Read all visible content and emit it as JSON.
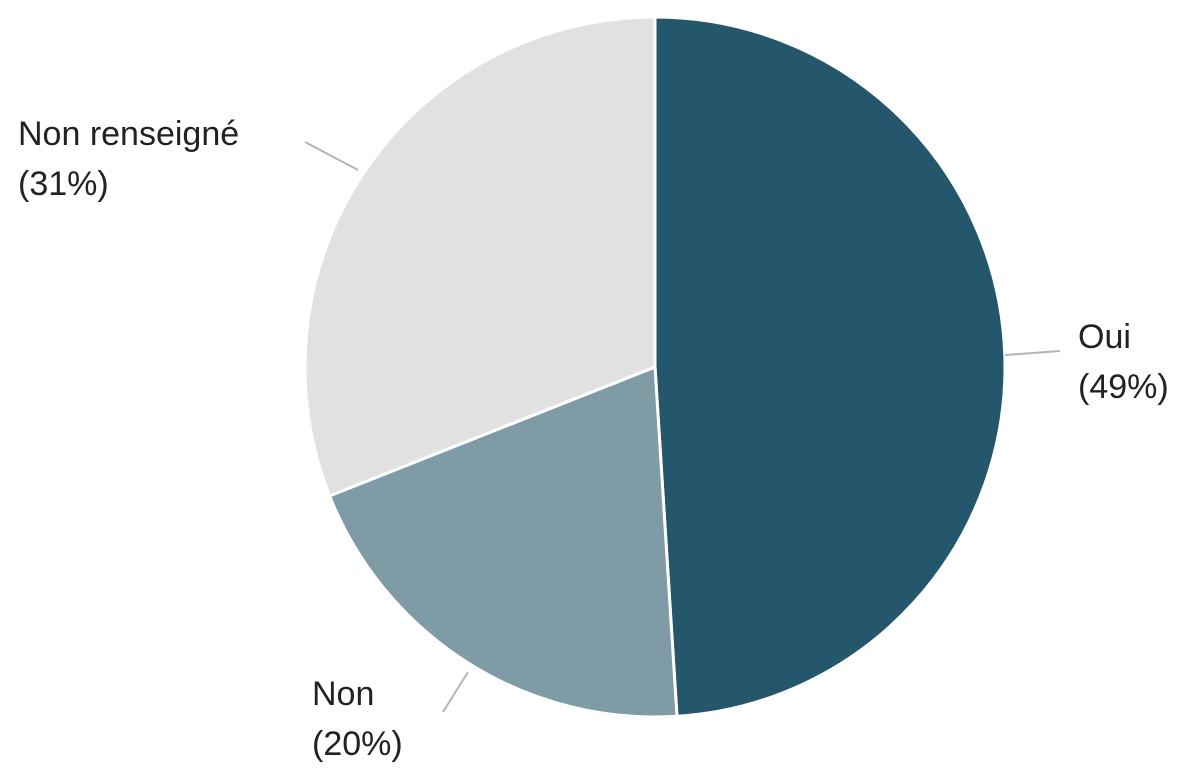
{
  "chart_data": {
    "type": "pie",
    "slices": [
      {
        "label": "Oui",
        "value": 49,
        "percent_label": "(49%)",
        "color": "#24576b"
      },
      {
        "label": "Non",
        "value": 20,
        "percent_label": "(20%)",
        "color": "#7f9ba6"
      },
      {
        "label": "Non renseigné",
        "value": 31,
        "percent_label": "(31%)",
        "color": "#e1e1e1"
      }
    ],
    "start": "top",
    "direction": "clockwise",
    "slice_border_color": "#ffffff",
    "leader_line_color": "#b5b5b5"
  }
}
